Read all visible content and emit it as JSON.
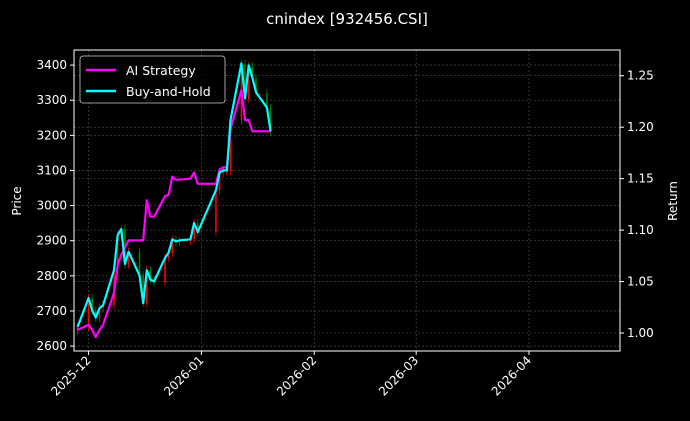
{
  "chart_data": {
    "type": "line",
    "title": "cnindex [932456.CSI]",
    "ylabel": "Price",
    "ylabel_right": "Return",
    "xlim": [
      "2025-11-27",
      "2026-04-26"
    ],
    "ylim": [
      2586,
      3443
    ],
    "ylim_right": [
      0.9825,
      1.275
    ],
    "x_ticks": [
      "2025-12",
      "2026-01",
      "2026-02",
      "2026-03",
      "2026-04"
    ],
    "x_tick_dates": [
      "2025-12-01",
      "2026-01-01",
      "2026-02-01",
      "2026-03-01",
      "2026-04-01"
    ],
    "y_ticks": [
      2600,
      2700,
      2800,
      2900,
      3000,
      3100,
      3200,
      3300,
      3400
    ],
    "y_ticks_right": [
      1.0,
      1.05,
      1.1,
      1.15,
      1.2,
      1.25
    ],
    "grid": true,
    "legend_position": "upper-left",
    "x": [
      "2025-11-28",
      "2025-12-01",
      "2025-12-02",
      "2025-12-03",
      "2025-12-04",
      "2025-12-05",
      "2025-12-08",
      "2025-12-09",
      "2025-12-10",
      "2025-12-11",
      "2025-12-12",
      "2025-12-15",
      "2025-12-16",
      "2025-12-17",
      "2025-12-18",
      "2025-12-19",
      "2025-12-22",
      "2025-12-23",
      "2025-12-24",
      "2025-12-25",
      "2025-12-26",
      "2025-12-29",
      "2025-12-30",
      "2025-12-31",
      "2026-01-05",
      "2026-01-06",
      "2026-01-07",
      "2026-01-08",
      "2026-01-09",
      "2026-01-12",
      "2026-01-13",
      "2026-01-14",
      "2026-01-15",
      "2026-01-16",
      "2026-01-19",
      "2026-01-20"
    ],
    "series": [
      {
        "name": "AI Strategy",
        "color": "#ff00ff",
        "axis": "right",
        "values": [
          1.003,
          1.008,
          1.003,
          0.996,
          1.003,
          1.008,
          1.039,
          1.066,
          1.076,
          1.083,
          1.09,
          1.09,
          1.09,
          1.129,
          1.113,
          1.113,
          1.133,
          1.134,
          1.152,
          1.149,
          1.149,
          1.15,
          1.156,
          1.145,
          1.145,
          1.159,
          1.161,
          1.161,
          1.198,
          1.236,
          1.207,
          1.207,
          1.196,
          1.196,
          1.196,
          1.196
        ]
      },
      {
        "name": "Buy-and-Hold",
        "color": "#00ffff",
        "axis": "right",
        "values": [
          1.006,
          1.034,
          1.022,
          1.015,
          1.024,
          1.027,
          1.061,
          1.095,
          1.101,
          1.067,
          1.079,
          1.056,
          1.029,
          1.061,
          1.052,
          1.05,
          1.073,
          1.078,
          1.091,
          1.089,
          1.09,
          1.091,
          1.107,
          1.098,
          1.139,
          1.156,
          1.158,
          1.158,
          1.207,
          1.262,
          1.228,
          1.26,
          1.248,
          1.234,
          1.219,
          1.196
        ]
      }
    ],
    "candles": {
      "axis": "left",
      "up_color": "#ff0000",
      "down_color": "#008000",
      "close": [
        2654,
        2737,
        2702,
        2680,
        2708,
        2717,
        2816,
        2916,
        2933,
        2833,
        2868,
        2802,
        2722,
        2816,
        2788,
        2782,
        2851,
        2865,
        2902,
        2896,
        2899,
        2905,
        2950,
        2925,
        3044,
        3093,
        3098,
        3098,
        3243,
        3403,
        3303,
        3397,
        3363,
        3320,
        3278,
        3209
      ]
    }
  }
}
